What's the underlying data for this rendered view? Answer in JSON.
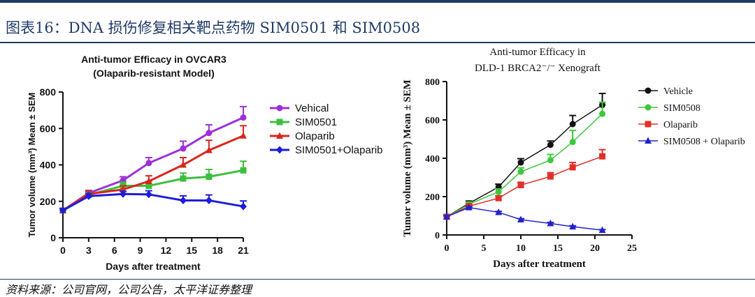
{
  "header": {
    "title": "图表16：DNA 损伤修复相关靶点药物 SIM0501 和 SIM0508"
  },
  "footer": {
    "source": "资料来源：公司官网，公司公告，太平洋证券整理"
  },
  "chart_data": [
    {
      "type": "line",
      "title": "Anti-tumor Efficacy in OVCAR3",
      "subtitle": "(Olaparib-resistant Model)",
      "xlabel": "Days after treatment",
      "ylabel": "Tumor volume (mm³) Mean ± SEM",
      "xlim": [
        0,
        21
      ],
      "ylim": [
        0,
        800
      ],
      "xticks": [
        0,
        3,
        6,
        9,
        12,
        15,
        18,
        21
      ],
      "yticks": [
        0,
        200,
        400,
        600,
        800
      ],
      "grid": false,
      "legend_position": "right",
      "x": [
        0,
        3,
        7,
        10,
        14,
        17,
        21
      ],
      "series": [
        {
          "name": "Vehical",
          "color": "#9b30d9",
          "marker": "circle",
          "values": [
            150,
            245,
            315,
            410,
            490,
            575,
            660
          ],
          "errors": [
            10,
            15,
            20,
            30,
            40,
            45,
            60
          ]
        },
        {
          "name": "SIM0501",
          "color": "#3cbf3c",
          "marker": "square",
          "values": [
            150,
            235,
            285,
            285,
            325,
            335,
            370
          ],
          "errors": [
            10,
            15,
            20,
            25,
            30,
            40,
            50
          ]
        },
        {
          "name": "Olaparib",
          "color": "#d9261c",
          "marker": "triangle",
          "values": [
            150,
            240,
            265,
            310,
            400,
            480,
            560
          ],
          "errors": [
            10,
            15,
            20,
            30,
            40,
            55,
            55
          ]
        },
        {
          "name": "SIM0501+Olaparib",
          "color": "#1c1cd9",
          "marker": "diamond",
          "values": [
            150,
            228,
            240,
            238,
            205,
            205,
            172
          ],
          "errors": [
            10,
            15,
            15,
            20,
            25,
            30,
            30
          ]
        }
      ]
    },
    {
      "type": "line",
      "title": "Anti-tumor Efficacy in",
      "subtitle": "DLD-1 BRCA2⁻/⁻ Xenograft",
      "xlabel": "Days after treatment",
      "ylabel": "Tumor volume (mm³) Mean ± SEM",
      "xlim": [
        0,
        25
      ],
      "ylim": [
        0,
        800
      ],
      "xticks": [
        0,
        5,
        10,
        15,
        20,
        25
      ],
      "yticks": [
        0,
        200,
        400,
        600,
        800
      ],
      "grid": false,
      "legend_position": "right",
      "x": [
        0,
        3,
        7,
        10,
        14,
        17,
        21
      ],
      "series": [
        {
          "name": "Vehicle",
          "color": "#111111",
          "marker": "circle",
          "values": [
            95,
            165,
            250,
            378,
            470,
            578,
            678
          ],
          "errors": [
            8,
            12,
            15,
            20,
            20,
            45,
            60
          ]
        },
        {
          "name": "SIM0508",
          "color": "#3cc83c",
          "marker": "circle",
          "values": [
            95,
            160,
            225,
            330,
            390,
            485,
            632
          ],
          "errors": [
            8,
            12,
            15,
            20,
            30,
            60,
            60
          ]
        },
        {
          "name": "Olaparib",
          "color": "#e0302a",
          "marker": "square",
          "values": [
            95,
            150,
            192,
            260,
            305,
            353,
            410
          ],
          "errors": [
            8,
            10,
            12,
            15,
            20,
            25,
            35
          ]
        },
        {
          "name": "SIM0508 + Olaparib",
          "color": "#2222cc",
          "marker": "triangle",
          "values": [
            95,
            143,
            118,
            80,
            60,
            43,
            25
          ],
          "errors": [
            5,
            5,
            5,
            5,
            5,
            5,
            3
          ]
        }
      ]
    }
  ]
}
